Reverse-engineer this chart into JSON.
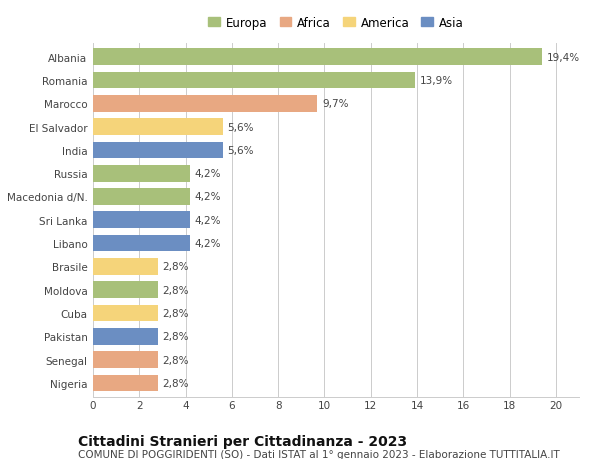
{
  "countries": [
    "Albania",
    "Romania",
    "Marocco",
    "El Salvador",
    "India",
    "Russia",
    "Macedonia d/N.",
    "Sri Lanka",
    "Libano",
    "Brasile",
    "Moldova",
    "Cuba",
    "Pakistan",
    "Senegal",
    "Nigeria"
  ],
  "values": [
    19.4,
    13.9,
    9.7,
    5.6,
    5.6,
    4.2,
    4.2,
    4.2,
    4.2,
    2.8,
    2.8,
    2.8,
    2.8,
    2.8,
    2.8
  ],
  "labels": [
    "19,4%",
    "13,9%",
    "9,7%",
    "5,6%",
    "5,6%",
    "4,2%",
    "4,2%",
    "4,2%",
    "4,2%",
    "2,8%",
    "2,8%",
    "2,8%",
    "2,8%",
    "2,8%",
    "2,8%"
  ],
  "continents": [
    "Europa",
    "Europa",
    "Africa",
    "America",
    "Asia",
    "Europa",
    "Europa",
    "Asia",
    "Asia",
    "America",
    "Europa",
    "America",
    "Asia",
    "Africa",
    "Africa"
  ],
  "colors": {
    "Europa": "#a8c07a",
    "Africa": "#e8a882",
    "America": "#f5d47a",
    "Asia": "#6b8ec2"
  },
  "legend_order": [
    "Europa",
    "Africa",
    "America",
    "Asia"
  ],
  "xlim": [
    0,
    21
  ],
  "xticks": [
    0,
    2,
    4,
    6,
    8,
    10,
    12,
    14,
    16,
    18,
    20
  ],
  "title": "Cittadini Stranieri per Cittadinanza - 2023",
  "subtitle": "COMUNE DI POGGIRIDENTI (SO) - Dati ISTAT al 1° gennaio 2023 - Elaborazione TUTTITALIA.IT",
  "background_color": "#ffffff",
  "grid_color": "#cccccc",
  "bar_height": 0.72,
  "title_fontsize": 10,
  "subtitle_fontsize": 7.5,
  "label_fontsize": 7.5,
  "tick_fontsize": 7.5,
  "legend_fontsize": 8.5
}
